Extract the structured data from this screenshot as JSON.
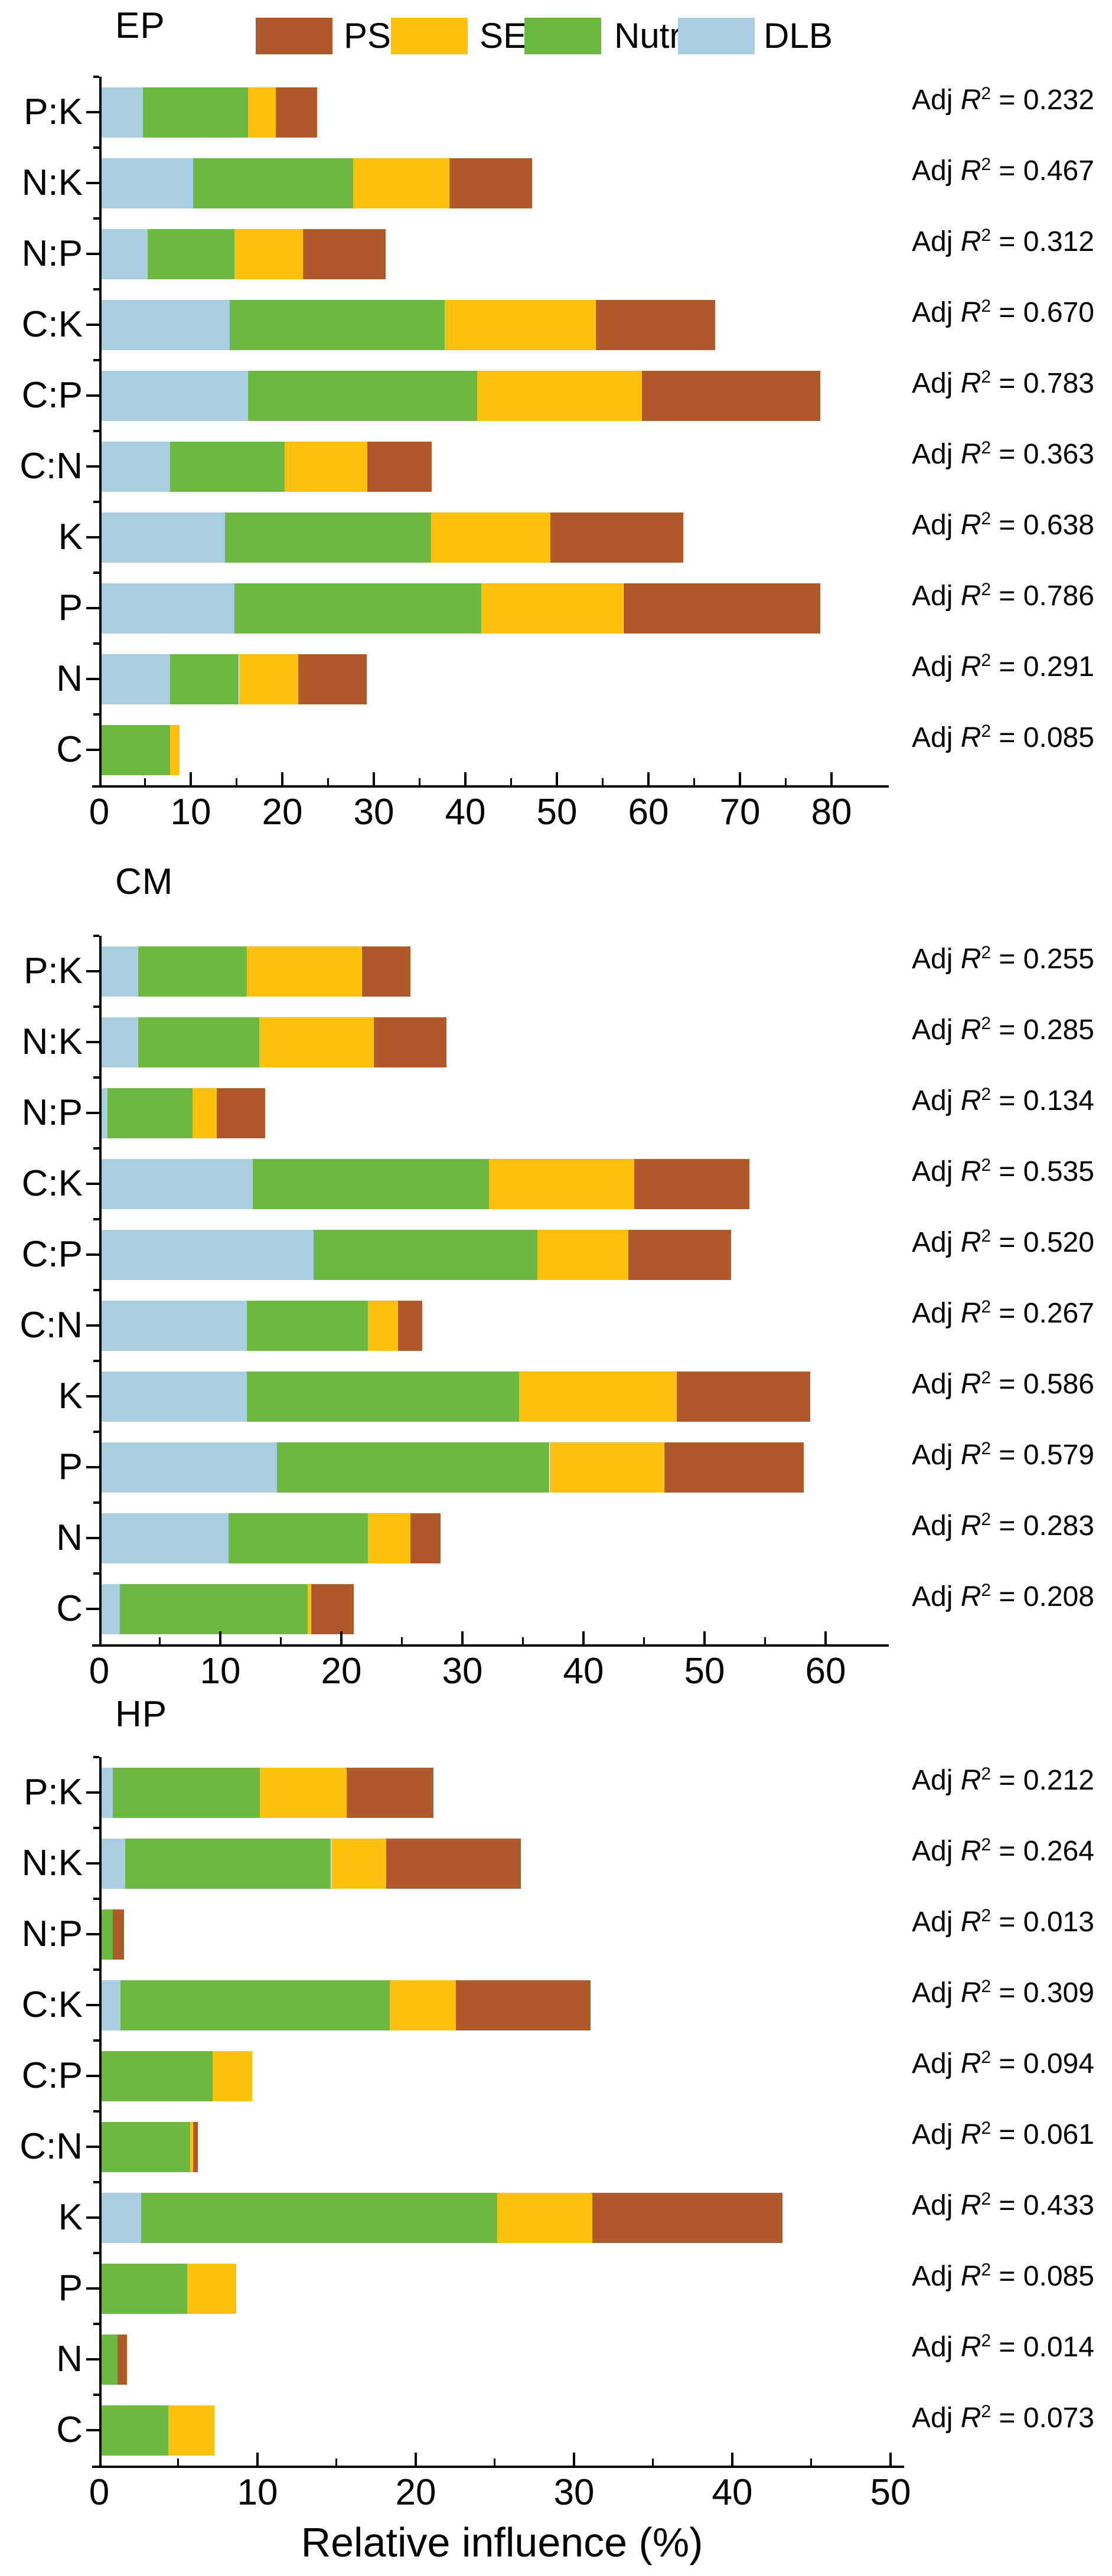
{
  "figure": {
    "xlabel": "Relative influence (%)",
    "background": "#ffffff",
    "axis_color": "#000000",
    "r2_prefix": "Adj ",
    "r2_symbol": "R",
    "r2_sup": "2",
    "r2_eq": " = ",
    "legend": {
      "items": [
        {
          "label": "PS",
          "color": "#B0592B"
        },
        {
          "label": "SE",
          "color": "#FCC10E"
        },
        {
          "label": "Nutr",
          "color": "#6CB840"
        },
        {
          "label": "DLB",
          "color": "#A8CEE2"
        }
      ]
    }
  },
  "chart_data": [
    {
      "type": "bar",
      "title": "EP",
      "stacked": true,
      "orientation": "horizontal",
      "xlabel": "Relative influence (%)",
      "xlim": [
        0,
        80
      ],
      "xticks": [
        0,
        10,
        20,
        30,
        40,
        50,
        60,
        70,
        80
      ],
      "grid": false,
      "legend_position": "top",
      "categories": [
        "P:K",
        "N:K",
        "N:P",
        "C:K",
        "C:P",
        "C:N",
        "K",
        "P",
        "N",
        "C"
      ],
      "series": [
        {
          "name": "DLB",
          "color": "#A8CEE2",
          "values": [
            4.5,
            10.0,
            5.0,
            14.0,
            16.0,
            7.5,
            13.5,
            14.5,
            7.5,
            0
          ]
        },
        {
          "name": "Nutr",
          "color": "#6CB840",
          "values": [
            11.5,
            17.5,
            9.5,
            23.5,
            25.0,
            12.5,
            22.5,
            27.0,
            7.5,
            7.5
          ]
        },
        {
          "name": "SE",
          "color": "#FCC10E",
          "values": [
            3.0,
            10.5,
            7.5,
            16.5,
            18.0,
            9.0,
            13.0,
            15.5,
            6.5,
            1.0
          ]
        },
        {
          "name": "PS",
          "color": "#B0592B",
          "values": [
            4.5,
            9.0,
            9.0,
            13.0,
            19.5,
            7.0,
            14.5,
            21.5,
            7.5,
            0
          ]
        }
      ],
      "adj_r2": [
        "0.232",
        "0.467",
        "0.312",
        "0.670",
        "0.783",
        "0.363",
        "0.638",
        "0.786",
        "0.291",
        "0.085"
      ]
    },
    {
      "type": "bar",
      "title": "CM",
      "stacked": true,
      "orientation": "horizontal",
      "xlabel": "Relative influence (%)",
      "xlim": [
        0,
        60
      ],
      "xticks": [
        0,
        10,
        20,
        30,
        40,
        50,
        60
      ],
      "grid": false,
      "categories": [
        "P:K",
        "N:K",
        "N:P",
        "C:K",
        "C:P",
        "C:N",
        "K",
        "P",
        "N",
        "C"
      ],
      "series": [
        {
          "name": "DLB",
          "color": "#A8CEE2",
          "values": [
            3.0,
            3.0,
            0.5,
            12.5,
            17.5,
            12.0,
            12.0,
            14.5,
            10.5,
            1.5
          ]
        },
        {
          "name": "Nutr",
          "color": "#6CB840",
          "values": [
            9.0,
            10.0,
            7.0,
            19.5,
            18.5,
            10.0,
            22.5,
            22.5,
            11.5,
            15.5
          ]
        },
        {
          "name": "SE",
          "color": "#FCC10E",
          "values": [
            9.5,
            9.5,
            2.0,
            12.0,
            7.5,
            2.5,
            13.0,
            9.5,
            3.5,
            0.3
          ]
        },
        {
          "name": "PS",
          "color": "#B0592B",
          "values": [
            4.0,
            6.0,
            4.0,
            9.5,
            8.5,
            2.0,
            11.0,
            11.5,
            2.5,
            3.5
          ]
        }
      ],
      "adj_r2": [
        "0.255",
        "0.285",
        "0.134",
        "0.535",
        "0.520",
        "0.267",
        "0.586",
        "0.579",
        "0.283",
        "0.208"
      ]
    },
    {
      "type": "bar",
      "title": "HP",
      "stacked": true,
      "orientation": "horizontal",
      "xlabel": "Relative influence (%)",
      "xlim": [
        0,
        50
      ],
      "xticks": [
        0,
        10,
        20,
        30,
        40,
        50
      ],
      "grid": false,
      "categories": [
        "P:K",
        "N:K",
        "N:P",
        "C:K",
        "C:P",
        "C:N",
        "K",
        "P",
        "N",
        "C"
      ],
      "series": [
        {
          "name": "DLB",
          "color": "#A8CEE2",
          "values": [
            0.7,
            1.5,
            0,
            1.2,
            0,
            0,
            2.5,
            0,
            0,
            0
          ]
        },
        {
          "name": "Nutr",
          "color": "#6CB840",
          "values": [
            9.3,
            13.0,
            0.7,
            17.0,
            7.0,
            5.6,
            22.5,
            5.4,
            1.0,
            4.2
          ]
        },
        {
          "name": "SE",
          "color": "#FCC10E",
          "values": [
            5.5,
            3.5,
            0,
            4.2,
            2.5,
            0.2,
            6.0,
            3.1,
            0,
            2.9
          ]
        },
        {
          "name": "PS",
          "color": "#B0592B",
          "values": [
            5.5,
            8.5,
            0.7,
            8.5,
            0,
            0.3,
            12.0,
            0,
            0.6,
            0
          ]
        }
      ],
      "adj_r2": [
        "0.212",
        "0.264",
        "0.013",
        "0.309",
        "0.094",
        "0.061",
        "0.433",
        "0.085",
        "0.014",
        "0.073"
      ]
    }
  ]
}
